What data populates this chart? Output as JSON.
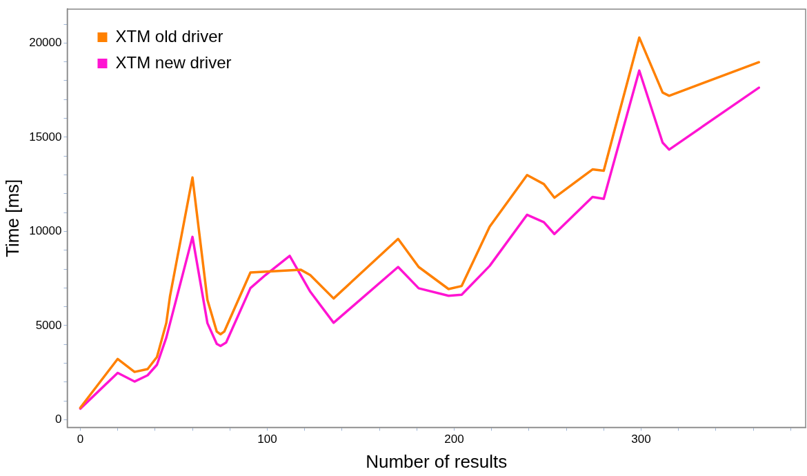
{
  "chart_data": {
    "type": "line",
    "xlabel": "Number of results",
    "ylabel": "Time [ms]",
    "xlim": [
      -7,
      388
    ],
    "ylim": [
      -400,
      21800
    ],
    "xticks": [
      0,
      {
        "value": 20,
        "label": null
      },
      {
        "value": 40,
        "label": null
      },
      {
        "value": 60,
        "label": null
      },
      {
        "value": 80,
        "label": null
      },
      100,
      {
        "value": 120,
        "label": null
      },
      {
        "value": 140,
        "label": null
      },
      {
        "value": 160,
        "label": null
      },
      {
        "value": 180,
        "label": null
      },
      200,
      {
        "value": 220,
        "label": null
      },
      {
        "value": 240,
        "label": null
      },
      {
        "value": 260,
        "label": null
      },
      {
        "value": 280,
        "label": null
      },
      300,
      {
        "value": 320,
        "label": null
      },
      {
        "value": 340,
        "label": null
      },
      {
        "value": 360,
        "label": null
      },
      {
        "value": 380,
        "label": null
      }
    ],
    "yticks": [
      0,
      {
        "value": 1000,
        "label": null
      },
      {
        "value": 2000,
        "label": null
      },
      {
        "value": 3000,
        "label": null
      },
      {
        "value": 4000,
        "label": null
      },
      5000,
      {
        "value": 6000,
        "label": null
      },
      {
        "value": 7000,
        "label": null
      },
      {
        "value": 8000,
        "label": null
      },
      {
        "value": 9000,
        "label": null
      },
      10000,
      {
        "value": 11000,
        "label": null
      },
      {
        "value": 12000,
        "label": null
      },
      {
        "value": 13000,
        "label": null
      },
      {
        "value": 14000,
        "label": null
      },
      15000,
      {
        "value": 16000,
        "label": null
      },
      {
        "value": 17000,
        "label": null
      },
      {
        "value": 18000,
        "label": null
      },
      {
        "value": 19000,
        "label": null
      },
      20000,
      {
        "value": 21000,
        "label": null
      }
    ],
    "grid": false,
    "legend": "top left",
    "marker": "none",
    "line_style": "solid",
    "series": [
      {
        "name": "XTM old driver",
        "color": "#ff8000",
        "x": [
          0,
          20,
          29,
          36,
          41,
          46,
          48,
          60,
          68,
          73,
          75,
          77,
          91,
          118,
          123,
          135.5,
          170,
          181,
          197,
          204,
          219,
          239,
          248,
          253.6,
          274,
          280,
          299,
          311.5,
          315,
          363
        ],
        "values": [
          640,
          3230,
          2540,
          2690,
          3330,
          5140,
          6570,
          12860,
          6360,
          4680,
          4540,
          4680,
          7820,
          7960,
          7680,
          6440,
          9600,
          8110,
          6940,
          7100,
          10250,
          12990,
          12510,
          11790,
          13290,
          13220,
          20290,
          17370,
          17200,
          18980
        ]
      },
      {
        "name": "XTM new driver",
        "color": "#ff14d2",
        "x": [
          0,
          20,
          29,
          36,
          41,
          46,
          60,
          68,
          73,
          75,
          78,
          91,
          99,
          112,
          123,
          135.5,
          170,
          181,
          197,
          204,
          219,
          239,
          248,
          253.6,
          274,
          280,
          299,
          311.5,
          315,
          363
        ],
        "values": [
          590,
          2490,
          2030,
          2360,
          2920,
          4360,
          9710,
          5130,
          4030,
          3920,
          4100,
          6990,
          7680,
          8700,
          6800,
          5150,
          8110,
          6980,
          6580,
          6640,
          8170,
          10880,
          10490,
          9860,
          11830,
          11730,
          18540,
          14710,
          14340,
          17630
        ]
      }
    ]
  }
}
